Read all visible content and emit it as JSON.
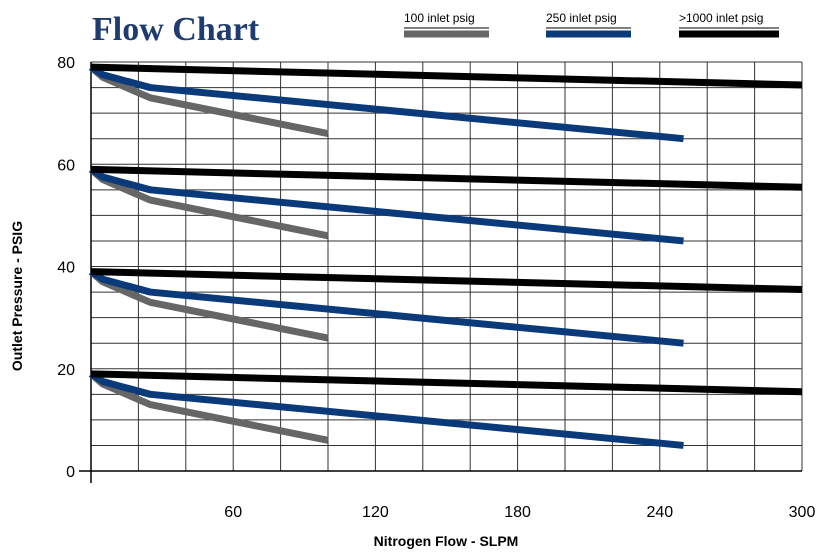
{
  "chart_data": {
    "type": "line",
    "title": "Flow Chart",
    "xlabel": "Nitrogen Flow - SLPM",
    "ylabel": "Outlet Pressure - PSIG",
    "xlim": [
      0,
      300
    ],
    "ylim": [
      0,
      80
    ],
    "x_ticks": [
      "60",
      "120",
      "180",
      "240",
      "300"
    ],
    "y_ticks": [
      "0",
      "20",
      "40",
      "60",
      "80"
    ],
    "grid": true,
    "legend_position": "top",
    "series": [
      {
        "name": "100 inlet psig",
        "color": "#666666",
        "curves": [
          {
            "x": [
              0,
              5,
              25,
              100
            ],
            "y": [
              79,
              77,
              73,
              66
            ]
          },
          {
            "x": [
              0,
              5,
              25,
              100
            ],
            "y": [
              59,
              57,
              53,
              46
            ]
          },
          {
            "x": [
              0,
              5,
              25,
              100
            ],
            "y": [
              39,
              37,
              33,
              26
            ]
          },
          {
            "x": [
              0,
              5,
              25,
              100
            ],
            "y": [
              19,
              17,
              13,
              6
            ]
          }
        ]
      },
      {
        "name": "250 inlet psig",
        "color": "#0a3a7a",
        "curves": [
          {
            "x": [
              0,
              5,
              25,
              250
            ],
            "y": [
              79,
              77.5,
              75,
              65
            ]
          },
          {
            "x": [
              0,
              5,
              25,
              250
            ],
            "y": [
              59,
              57.5,
              55,
              45
            ]
          },
          {
            "x": [
              0,
              5,
              25,
              250
            ],
            "y": [
              39,
              37.5,
              35,
              25
            ]
          },
          {
            "x": [
              0,
              5,
              25,
              250
            ],
            "y": [
              19,
              17.5,
              15,
              5
            ]
          }
        ]
      },
      {
        "name": ">1000 inlet psig",
        "color": "#000000",
        "curves": [
          {
            "x": [
              0,
              300
            ],
            "y": [
              79,
              75.5
            ]
          },
          {
            "x": [
              0,
              300
            ],
            "y": [
              59,
              55.5
            ]
          },
          {
            "x": [
              0,
              300
            ],
            "y": [
              39,
              35.5
            ]
          },
          {
            "x": [
              0,
              300
            ],
            "y": [
              19,
              15.5
            ]
          }
        ]
      }
    ]
  }
}
